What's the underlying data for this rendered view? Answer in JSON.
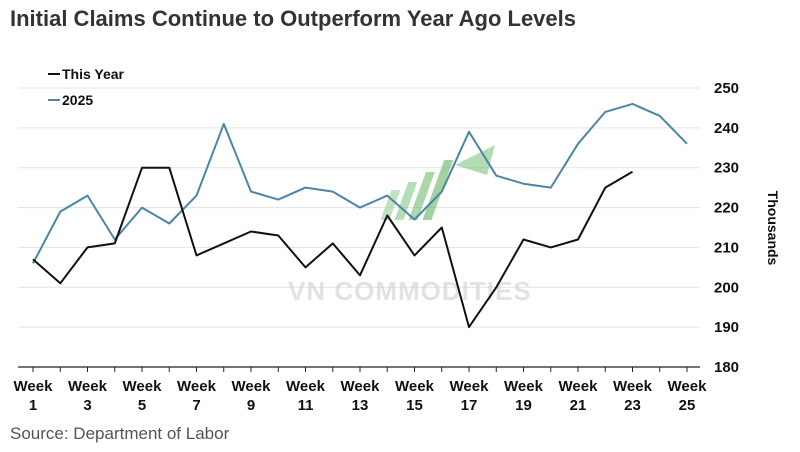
{
  "title": "Initial Claims Continue to Outperform Year Ago Levels",
  "source": "Source: Department of Labor",
  "watermark": "VN COMMODITIES",
  "chart_data": {
    "type": "line",
    "x": [
      1,
      2,
      3,
      4,
      5,
      6,
      7,
      8,
      9,
      10,
      11,
      12,
      13,
      14,
      15,
      16,
      17,
      18,
      19,
      20,
      21,
      22,
      23,
      24,
      25
    ],
    "x_tick_values": [
      1,
      3,
      5,
      7,
      9,
      11,
      13,
      15,
      17,
      19,
      21,
      23,
      25
    ],
    "x_tick_prefix": "Week",
    "ylabel": "Thousands",
    "ylim": [
      180,
      250
    ],
    "yticks": [
      180,
      190,
      200,
      210,
      220,
      230,
      240,
      250
    ],
    "y_axis_side": "right",
    "grid": "horizontal",
    "legend_position": "top-left",
    "series": [
      {
        "name": "This Year",
        "color": "#111111",
        "values": [
          207,
          201,
          210,
          211,
          230,
          230,
          208,
          211,
          214,
          213,
          205,
          211,
          203,
          218,
          208,
          215,
          190,
          200,
          212,
          210,
          212,
          225,
          229,
          null,
          null
        ]
      },
      {
        "name": "2025",
        "color": "#4a86a8",
        "values": [
          206,
          219,
          223,
          212,
          220,
          216,
          223,
          241,
          224,
          222,
          225,
          224,
          220,
          223,
          217,
          224,
          239,
          228,
          226,
          225,
          236,
          244,
          246,
          243,
          236
        ]
      }
    ]
  }
}
